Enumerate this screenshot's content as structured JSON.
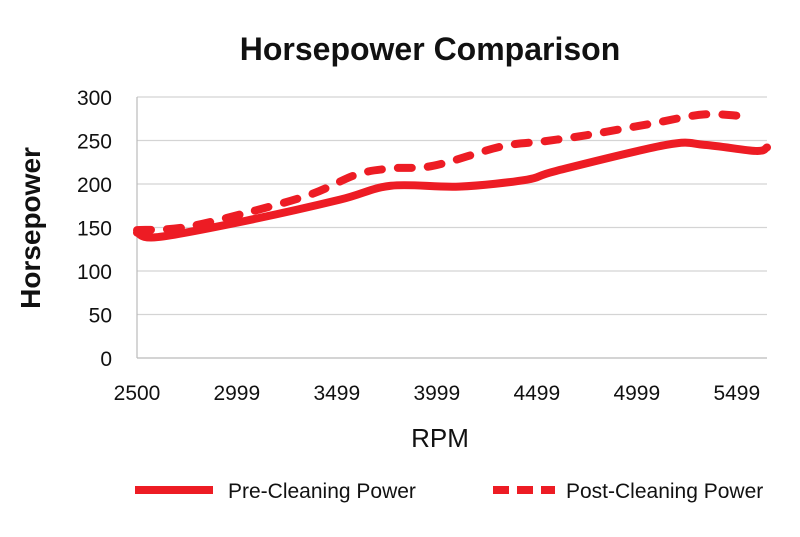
{
  "chart_data": {
    "type": "line",
    "title": "Horsepower Comparison",
    "xlabel": "RPM",
    "ylabel": "Horsepower",
    "xlim": [
      2500,
      5650
    ],
    "ylim": [
      0,
      300
    ],
    "x_ticks": [
      2500,
      2999,
      3499,
      3999,
      4499,
      4999,
      5499
    ],
    "y_ticks": [
      0,
      50,
      100,
      150,
      200,
      250,
      300
    ],
    "grid": "horizontal",
    "legend": "bottom",
    "color": "#ED1C24",
    "series": [
      {
        "name": "Pre-Cleaning Power",
        "style": "solid",
        "x": [
          2500,
          2605,
          3050,
          3515,
          3770,
          4110,
          4450,
          4595,
          5148,
          5338,
          5593,
          5650
        ],
        "y": [
          144,
          139,
          158,
          182,
          198,
          197,
          205,
          215,
          245,
          245,
          238,
          242
        ]
      },
      {
        "name": "Post-Cleaning Power",
        "style": "dashed",
        "x": [
          2500,
          2733,
          3050,
          3368,
          3600,
          3775,
          3983,
          4320,
          4533,
          4745,
          5063,
          5338,
          5570
        ],
        "y": [
          147,
          150,
          167,
          188,
          211,
          218,
          221,
          243,
          249,
          256,
          269,
          280,
          277
        ]
      }
    ]
  }
}
